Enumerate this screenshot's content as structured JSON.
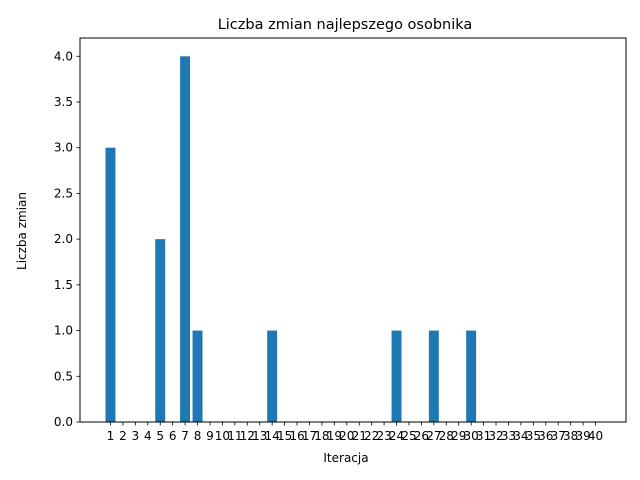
{
  "chart_data": {
    "type": "bar",
    "title": "Liczba zmian najlepszego osobnika",
    "xlabel": "Iteracja",
    "ylabel": "Liczba zmian",
    "categories": [
      "1",
      "2",
      "3",
      "4",
      "5",
      "6",
      "7",
      "8",
      "9",
      "10",
      "11",
      "12",
      "13",
      "14",
      "15",
      "16",
      "17",
      "18",
      "19",
      "20",
      "21",
      "22",
      "23",
      "24",
      "25",
      "26",
      "27",
      "28",
      "29",
      "30",
      "31",
      "32",
      "33",
      "34",
      "35",
      "36",
      "37",
      "38",
      "39",
      "40"
    ],
    "values": [
      3,
      0,
      0,
      0,
      2,
      0,
      4,
      1,
      0,
      0,
      0,
      0,
      0,
      1,
      0,
      0,
      0,
      0,
      0,
      0,
      0,
      0,
      0,
      1,
      0,
      0,
      1,
      0,
      0,
      1,
      0,
      0,
      0,
      0,
      0,
      0,
      0,
      0,
      0,
      0
    ],
    "xlim": [
      -1.45,
      42.45
    ],
    "ylim": [
      0,
      4.2
    ],
    "yticks": [
      "0.0",
      "0.5",
      "1.0",
      "1.5",
      "2.0",
      "2.5",
      "3.0",
      "3.5",
      "4.0"
    ],
    "bar_color": "#1f77b4",
    "grid": false,
    "legend": "none"
  }
}
